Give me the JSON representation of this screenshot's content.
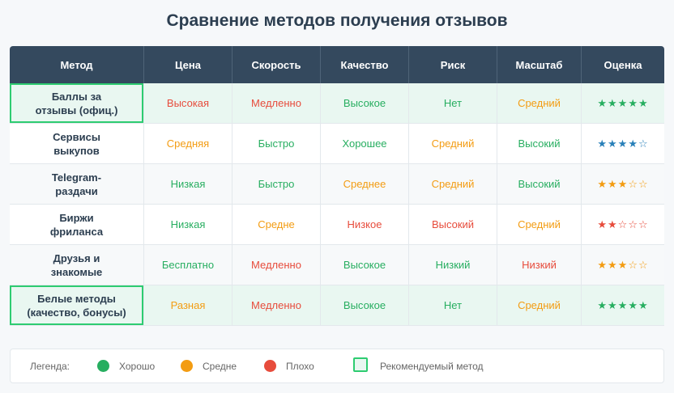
{
  "title": "Сравнение методов получения отзывов",
  "headers": [
    "Метод",
    "Цена",
    "Скорость",
    "Качество",
    "Риск",
    "Масштаб",
    "Оценка"
  ],
  "rows": [
    {
      "method_line1": "Баллы за",
      "method_line2": "отзывы (офиц.)",
      "price": "Высокая",
      "speed": "Медленно",
      "quality": "Высокое",
      "risk": "Нет",
      "scale": "Средний",
      "rating_filled": "★★★★★",
      "rating_empty": ""
    },
    {
      "method_line1": "Сервисы",
      "method_line2": "выкупов",
      "price": "Средняя",
      "speed": "Быстро",
      "quality": "Хорошее",
      "risk": "Средний",
      "scale": "Высокий",
      "rating_filled": "★★★★",
      "rating_empty": "☆"
    },
    {
      "method_line1": "Telegram-",
      "method_line2": "раздачи",
      "price": "Низкая",
      "speed": "Быстро",
      "quality": "Среднее",
      "risk": "Средний",
      "scale": "Высокий",
      "rating_filled": "★★★",
      "rating_empty": "☆☆"
    },
    {
      "method_line1": "Биржи",
      "method_line2": "фриланса",
      "price": "Низкая",
      "speed": "Средне",
      "quality": "Низкое",
      "risk": "Высокий",
      "scale": "Средний",
      "rating_filled": "★★",
      "rating_empty": "☆☆☆"
    },
    {
      "method_line1": "Друзья и",
      "method_line2": "знакомые",
      "price": "Бесплатно",
      "speed": "Медленно",
      "quality": "Высокое",
      "risk": "Низкий",
      "scale": "Низкий",
      "rating_filled": "★★★",
      "rating_empty": "☆☆"
    },
    {
      "method_line1": "Белые методы",
      "method_line2": "(качество, бонусы)",
      "price": "Разная",
      "speed": "Медленно",
      "quality": "Высокое",
      "risk": "Нет",
      "scale": "Средний",
      "rating_filled": "★★★★★",
      "rating_empty": ""
    }
  ],
  "legend": {
    "label": "Легенда:",
    "good": "Хорошо",
    "mid": "Средне",
    "bad": "Плохо",
    "recommended": "Рекомендуемый метод"
  },
  "colors": {
    "good": "#27ae60",
    "mid": "#f39c12",
    "bad": "#e74c3c",
    "header_bg": "#34495e",
    "recommended_border": "#2ecc71",
    "recommended_bg": "#e9f7f1"
  }
}
